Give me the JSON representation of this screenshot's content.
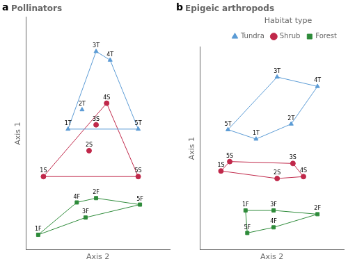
{
  "chart_data": [
    {
      "type": "scatter",
      "title": "Pollinators",
      "annotations": [
        "a"
      ],
      "xlabel": "Axis 2",
      "ylabel": "Axis 1",
      "xlim": [
        -0.02,
        0.8
      ],
      "ylim": [
        -0.04,
        1.04
      ],
      "tick_labels": false,
      "grid": false,
      "series": [
        {
          "color": "#5b9bd5",
          "marker": "triangle",
          "points": [
            {
              "label": "1T",
              "x": 0.22,
              "y": 0.52
            },
            {
              "label": "2T",
              "x": 0.3,
              "y": 0.61
            },
            {
              "label": "3T",
              "x": 0.38,
              "y": 0.88
            },
            {
              "label": "4T",
              "x": 0.46,
              "y": 0.84
            },
            {
              "label": "5T",
              "x": 0.62,
              "y": 0.52
            }
          ],
          "hull_order": [
            "1T",
            "3T",
            "4T",
            "5T",
            "1T"
          ]
        },
        {
          "color": "#c0284a",
          "marker": "circle",
          "points": [
            {
              "label": "1S",
              "x": 0.08,
              "y": 0.3
            },
            {
              "label": "2S",
              "x": 0.34,
              "y": 0.42
            },
            {
              "label": "3S",
              "x": 0.38,
              "y": 0.54
            },
            {
              "label": "4S",
              "x": 0.44,
              "y": 0.64
            },
            {
              "label": "5S",
              "x": 0.62,
              "y": 0.3
            }
          ],
          "hull_order": [
            "1S",
            "4S",
            "5S",
            "1S"
          ]
        },
        {
          "color": "#2e8b3a",
          "marker": "square",
          "points": [
            {
              "label": "1F",
              "x": 0.05,
              "y": 0.03
            },
            {
              "label": "2F",
              "x": 0.38,
              "y": 0.2
            },
            {
              "label": "3F",
              "x": 0.32,
              "y": 0.11
            },
            {
              "label": "4F",
              "x": 0.27,
              "y": 0.18
            },
            {
              "label": "5F",
              "x": 0.63,
              "y": 0.17
            }
          ],
          "hull_order": [
            "1F",
            "4F",
            "2F",
            "5F",
            "3F",
            "1F"
          ]
        }
      ]
    },
    {
      "type": "scatter",
      "title": "Epigeic arthropods",
      "annotations": [
        "b"
      ],
      "xlabel": "Axis 2",
      "ylabel": "Axis 1",
      "xlim": [
        -0.02,
        0.8
      ],
      "ylim": [
        -0.04,
        1.04
      ],
      "tick_labels": false,
      "grid": false,
      "legend": "upper right",
      "legend_title": "Habitat type",
      "series": [
        {
          "name": "Tundra",
          "color": "#5b9bd5",
          "marker": "triangle",
          "points": [
            {
              "label": "1T",
              "x": 0.3,
              "y": 0.55
            },
            {
              "label": "2T",
              "x": 0.5,
              "y": 0.63
            },
            {
              "label": "3T",
              "x": 0.42,
              "y": 0.88
            },
            {
              "label": "4T",
              "x": 0.65,
              "y": 0.83
            },
            {
              "label": "5T",
              "x": 0.14,
              "y": 0.6
            }
          ],
          "hull_order": [
            "5T",
            "3T",
            "4T",
            "2T",
            "1T",
            "5T"
          ]
        },
        {
          "name": "Shrub",
          "color": "#c0284a",
          "marker": "circle",
          "points": [
            {
              "label": "1S",
              "x": 0.1,
              "y": 0.38
            },
            {
              "label": "2S",
              "x": 0.42,
              "y": 0.34
            },
            {
              "label": "3S",
              "x": 0.51,
              "y": 0.42
            },
            {
              "label": "4S",
              "x": 0.57,
              "y": 0.35
            },
            {
              "label": "5S",
              "x": 0.15,
              "y": 0.43
            }
          ],
          "hull_order": [
            "5S",
            "3S",
            "4S",
            "2S",
            "1S",
            "5S"
          ]
        },
        {
          "name": "Forest",
          "color": "#2e8b3a",
          "marker": "square",
          "points": [
            {
              "label": "1F",
              "x": 0.24,
              "y": 0.17
            },
            {
              "label": "2F",
              "x": 0.65,
              "y": 0.15
            },
            {
              "label": "3F",
              "x": 0.4,
              "y": 0.17
            },
            {
              "label": "4F",
              "x": 0.4,
              "y": 0.08
            },
            {
              "label": "5F",
              "x": 0.25,
              "y": 0.05
            }
          ],
          "hull_order": [
            "1F",
            "3F",
            "2F",
            "4F",
            "5F",
            "1F"
          ]
        }
      ]
    }
  ]
}
